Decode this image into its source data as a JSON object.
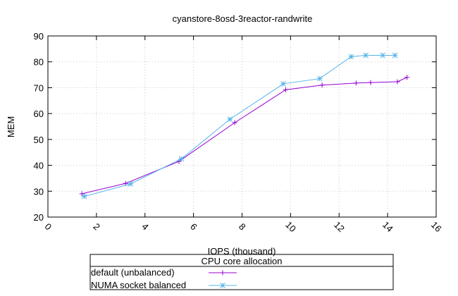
{
  "chart_data": {
    "type": "line",
    "title": "cyanstore-8osd-3reactor-randwrite",
    "xlabel": "IOPS (thousand)",
    "ylabel": "MEM",
    "xlim": [
      0,
      16
    ],
    "ylim": [
      20,
      90
    ],
    "xticks": [
      "0",
      "2",
      "4",
      "6",
      "8",
      "10",
      "12",
      "14",
      "16"
    ],
    "yticks": [
      "20",
      "30",
      "40",
      "50",
      "60",
      "70",
      "80",
      "90"
    ],
    "grid": true,
    "legend": {
      "title": "CPU core allocation",
      "placement": "bottom-center"
    },
    "series": [
      {
        "name": "default (unbalanced)",
        "color": "#9400d3",
        "marker": "plus",
        "x": [
          1.4,
          3.2,
          5.4,
          7.7,
          9.8,
          11.3,
          12.7,
          13.3,
          14.4,
          14.8
        ],
        "y": [
          29.0,
          33.0,
          41.5,
          56.5,
          69.2,
          71.0,
          71.8,
          72.0,
          72.3,
          74.0
        ]
      },
      {
        "name": "NUMA socket balanced",
        "color": "#56b4e9",
        "marker": "asterisk",
        "x": [
          1.5,
          3.4,
          5.5,
          7.5,
          9.7,
          11.2,
          12.5,
          13.1,
          13.8,
          14.3
        ],
        "y": [
          28.0,
          32.8,
          42.5,
          57.8,
          71.5,
          73.5,
          82.0,
          82.5,
          82.5,
          82.5
        ]
      }
    ]
  }
}
